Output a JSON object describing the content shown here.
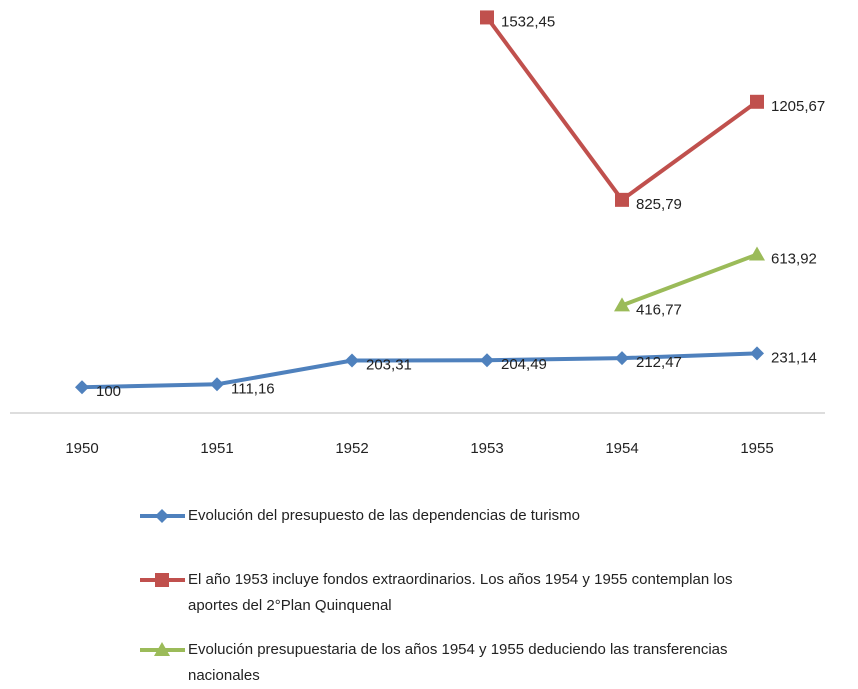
{
  "chart_data": {
    "type": "line",
    "categories": [
      "1950",
      "1951",
      "1952",
      "1953",
      "1954",
      "1955"
    ],
    "ylim": [
      0,
      1600
    ],
    "series": [
      {
        "name": "Evolución del presupuesto de las dependencias de turismo",
        "color": "#4f81bd",
        "marker": "diamond",
        "values": [
          100,
          111.16,
          203.31,
          204.49,
          212.47,
          231.14
        ],
        "value_labels": [
          "100",
          "111,16",
          "203,31",
          "204,49",
          "212,47",
          "231,14"
        ]
      },
      {
        "name": "El año 1953 incluye fondos extraordinarios. Los años 1954 y 1955 contemplan los aportes del 2°Plan Quinquenal",
        "color": "#c0504d",
        "marker": "square",
        "values": [
          null,
          null,
          null,
          1532.45,
          825.79,
          1205.67
        ],
        "value_labels": [
          null,
          null,
          null,
          "1532,45",
          "825,79",
          "1205,67"
        ]
      },
      {
        "name": "Evolución presupuestaria de los años 1954 y 1955 deduciendo las transferencias nacionales",
        "color": "#9bbb59",
        "marker": "triangle",
        "values": [
          null,
          null,
          null,
          null,
          416.77,
          613.92
        ],
        "value_labels": [
          null,
          null,
          null,
          null,
          "416,77",
          "613,92"
        ]
      }
    ]
  }
}
